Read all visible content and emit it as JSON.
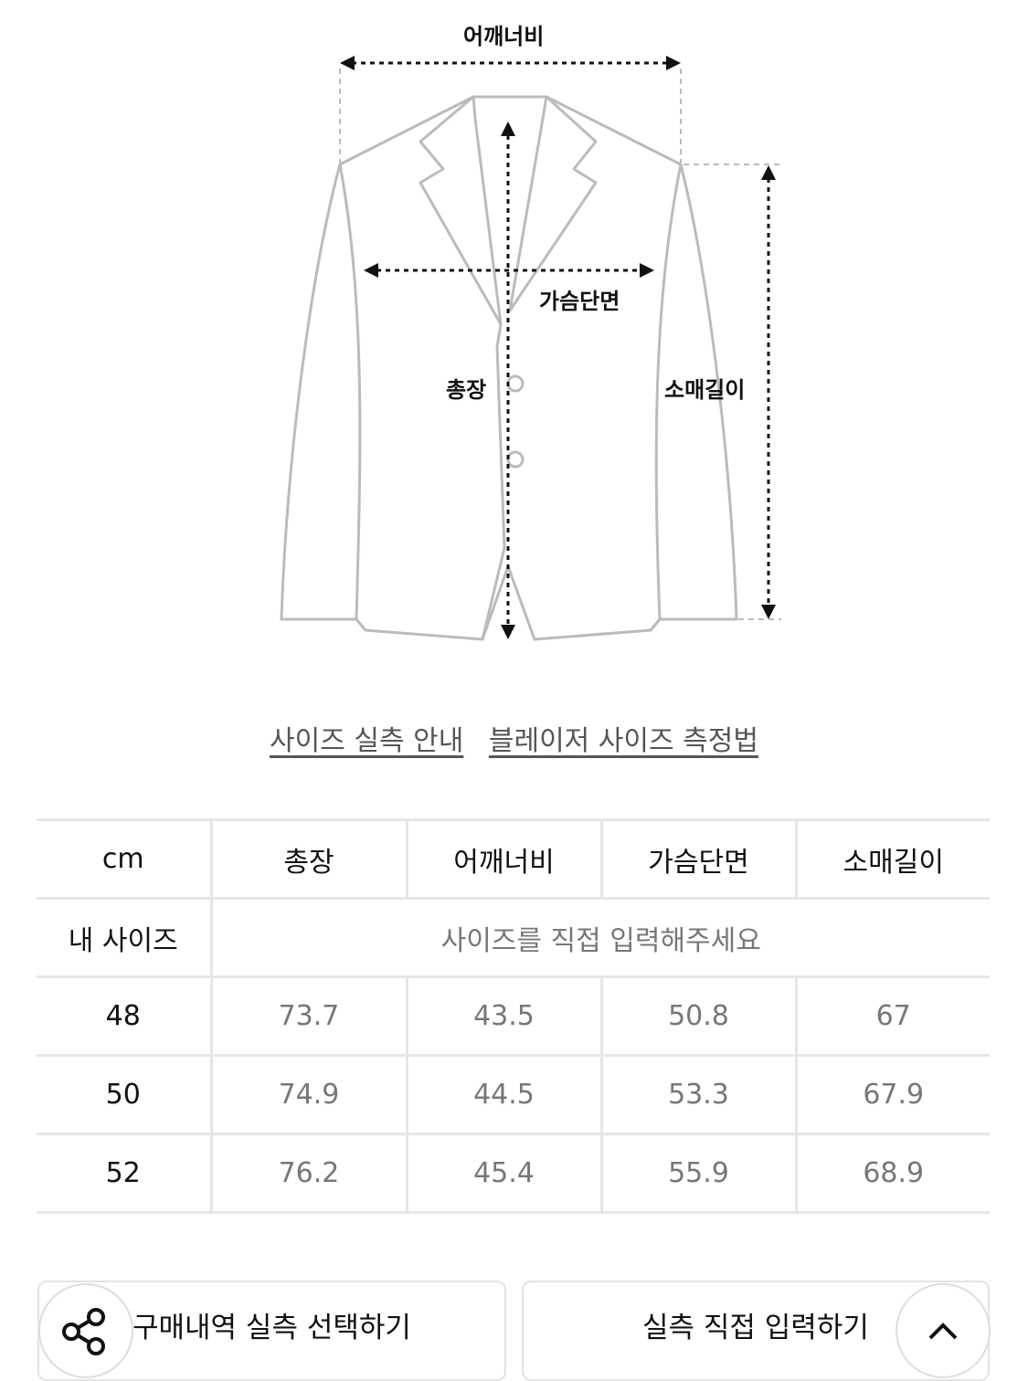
{
  "diagram": {
    "labels": {
      "shoulder": "어깨너비",
      "chest": "가슴단면",
      "length": "총장",
      "sleeve": "소매길이"
    }
  },
  "links": {
    "size_guide": "사이즈 실측 안내",
    "measure_method": "블레이저 사이즈 측정법"
  },
  "table": {
    "headers": [
      "cm",
      "총장",
      "어깨너비",
      "가슴단면",
      "소매길이"
    ],
    "my_size": {
      "label": "내 사이즈",
      "placeholder": "사이즈를 직접 입력해주세요"
    },
    "rows": [
      {
        "size": "48",
        "values": [
          "73.7",
          "43.5",
          "50.8",
          "67"
        ]
      },
      {
        "size": "50",
        "values": [
          "74.9",
          "44.5",
          "53.3",
          "67.9"
        ]
      },
      {
        "size": "52",
        "values": [
          "76.2",
          "45.4",
          "55.9",
          "68.9"
        ]
      }
    ]
  },
  "buttons": {
    "purchase_history": "구매내역 실측 선택하기",
    "direct_input": "실측 직접 입력하기"
  },
  "icons": {
    "share": "share-icon",
    "up": "chevron-up-icon"
  }
}
